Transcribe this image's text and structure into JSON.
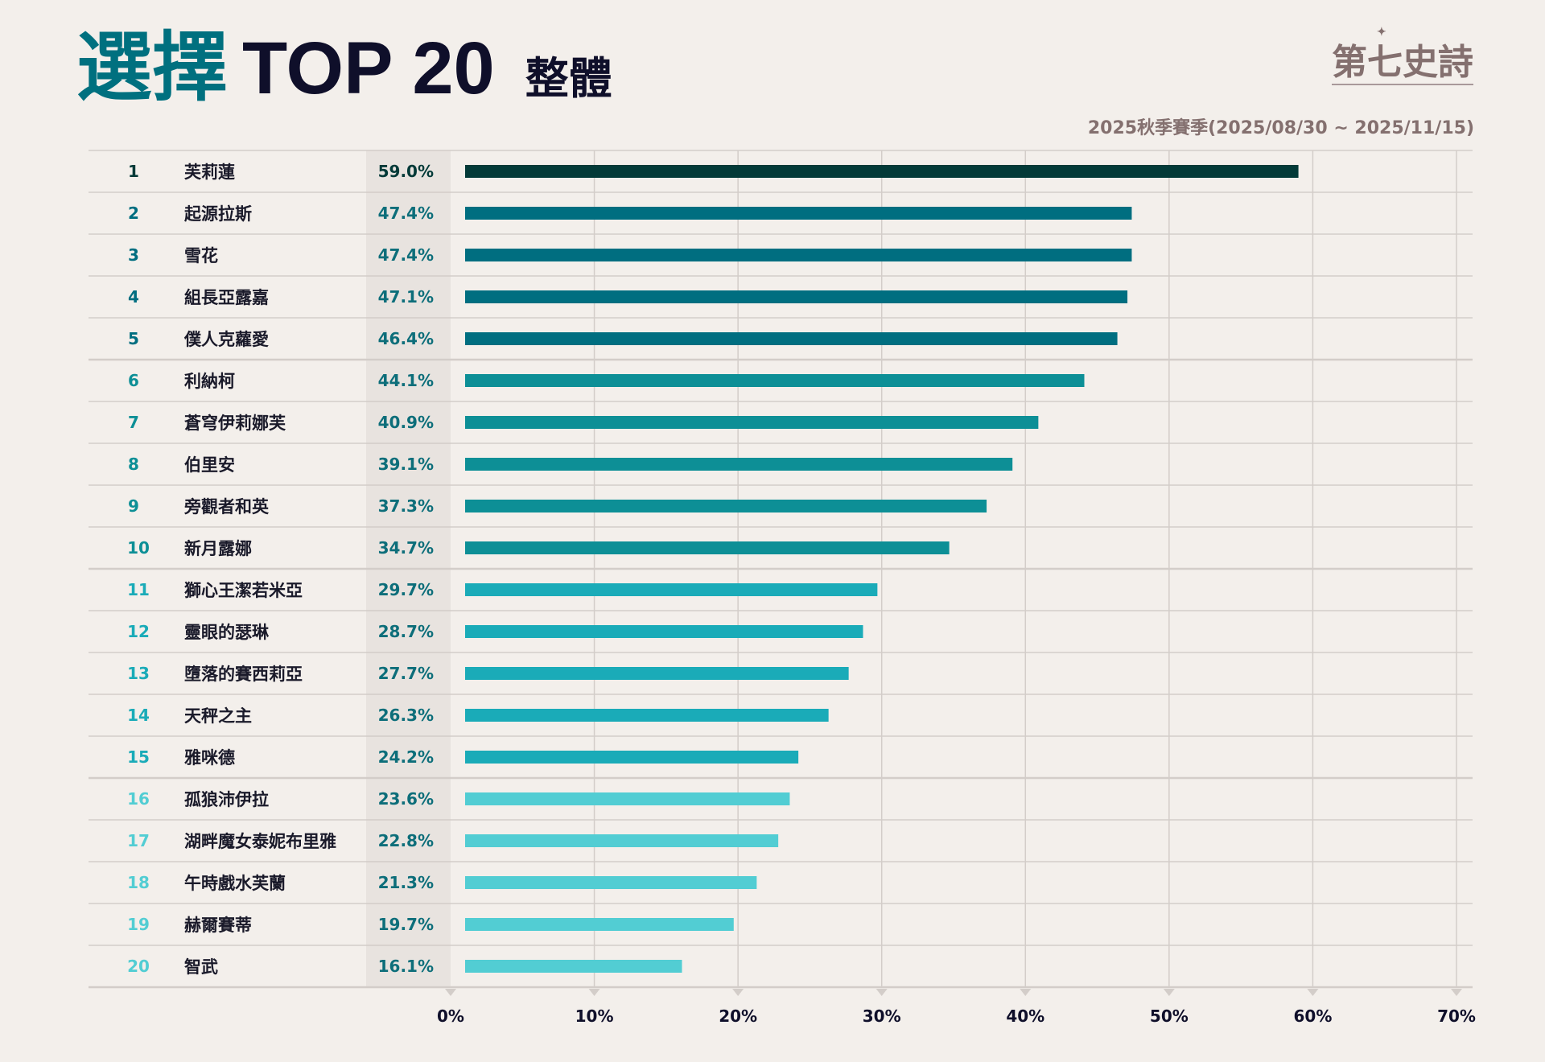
{
  "header": {
    "title_highlight": "選擇",
    "title_main": "TOP 20",
    "title_scope": "整體",
    "logo_text": "第七史詩",
    "subtitle": "2025秋季賽季(2025/08/30 ~ 2025/11/15)"
  },
  "chart_data": {
    "type": "bar",
    "orientation": "horizontal",
    "title": "選擇 TOP 20 整體",
    "xlabel": "",
    "ylabel": "",
    "xlim": [
      0,
      70
    ],
    "x_ticks": [
      "0%",
      "10%",
      "20%",
      "30%",
      "40%",
      "50%",
      "60%",
      "70%"
    ],
    "grid": true,
    "ranks": [
      "1",
      "2",
      "3",
      "4",
      "5",
      "6",
      "7",
      "8",
      "9",
      "10",
      "11",
      "12",
      "13",
      "14",
      "15",
      "16",
      "17",
      "18",
      "19",
      "20"
    ],
    "categories": [
      "芙莉蓮",
      "起源拉斯",
      "雪花",
      "組長亞露嘉",
      "僕人克蘿愛",
      "利納柯",
      "蒼穹伊莉娜芙",
      "伯里安",
      "旁觀者和英",
      "新月露娜",
      "獅心王潔若米亞",
      "靈眼的瑟琳",
      "墮落的賽西莉亞",
      "天秤之主",
      "雅咪德",
      "孤狼沛伊拉",
      "湖畔魔女泰妮布里雅",
      "午時戲水芙蘭",
      "赫爾賽蒂",
      "智武"
    ],
    "values": [
      59.0,
      47.4,
      47.4,
      47.1,
      46.4,
      44.1,
      40.9,
      39.1,
      37.3,
      34.7,
      29.7,
      28.7,
      27.7,
      26.3,
      24.2,
      23.6,
      22.8,
      21.3,
      19.7,
      16.1
    ],
    "value_labels": [
      "59.0%",
      "47.4%",
      "47.4%",
      "47.1%",
      "46.4%",
      "44.1%",
      "40.9%",
      "39.1%",
      "37.3%",
      "34.7%",
      "29.7%",
      "28.7%",
      "27.7%",
      "26.3%",
      "24.2%",
      "23.6%",
      "22.8%",
      "21.3%",
      "19.7%",
      "16.1%"
    ],
    "colors": {
      "rank1": "#033a38",
      "ranks2to5": "#006e80",
      "ranks6to10": "#0d8f96",
      "ranks11to15": "#1aabb8",
      "ranks16to20": "#52cdd3",
      "pct_text": "#0d6e7a",
      "grid": "#d3cdc9",
      "pct_column_bg": "#e8e3df"
    }
  }
}
